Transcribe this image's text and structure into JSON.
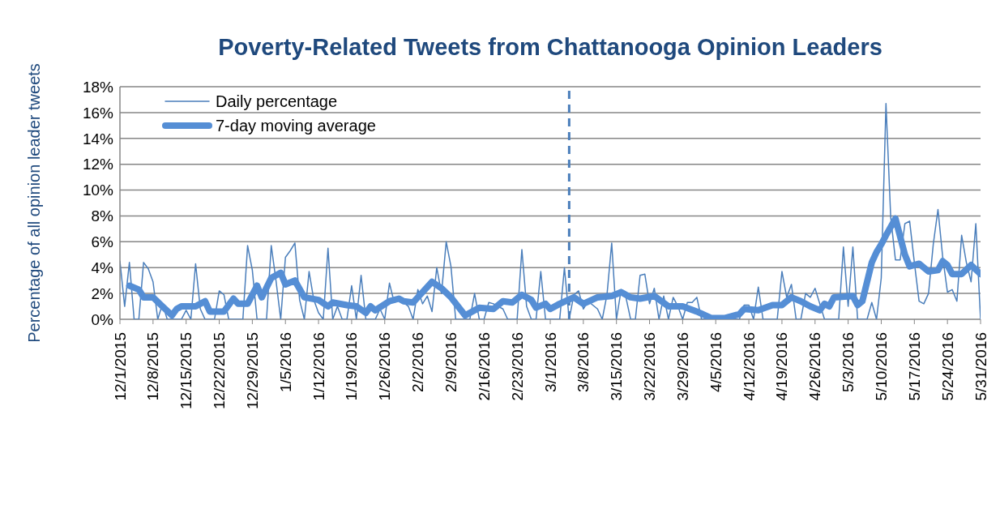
{
  "chart_data": {
    "type": "line",
    "title": "Poverty-Related Tweets from Chattanooga Opinion Leaders",
    "ylabel": "Percentage of all opinion leader tweets",
    "x": [
      "2015-12-01",
      "2015-12-02",
      "2015-12-03",
      "2015-12-04",
      "2015-12-05",
      "2015-12-06",
      "2015-12-07",
      "2015-12-08",
      "2015-12-09",
      "2015-12-10",
      "2015-12-11",
      "2015-12-12",
      "2015-12-13",
      "2015-12-14",
      "2015-12-15",
      "2015-12-16",
      "2015-12-17",
      "2015-12-18",
      "2015-12-19",
      "2015-12-20",
      "2015-12-21",
      "2015-12-22",
      "2015-12-23",
      "2015-12-24",
      "2015-12-25",
      "2015-12-26",
      "2015-12-27",
      "2015-12-28",
      "2015-12-29",
      "2015-12-30",
      "2015-12-31",
      "2016-01-01",
      "2016-01-02",
      "2016-01-03",
      "2016-01-04",
      "2016-01-05",
      "2016-01-06",
      "2016-01-07",
      "2016-01-08",
      "2016-01-09",
      "2016-01-10",
      "2016-01-11",
      "2016-01-12",
      "2016-01-13",
      "2016-01-14",
      "2016-01-15",
      "2016-01-16",
      "2016-01-17",
      "2016-01-18",
      "2016-01-19",
      "2016-01-20",
      "2016-01-21",
      "2016-01-22",
      "2016-01-23",
      "2016-01-24",
      "2016-01-25",
      "2016-01-26",
      "2016-01-27",
      "2016-01-28",
      "2016-01-29",
      "2016-01-30",
      "2016-01-31",
      "2016-02-01",
      "2016-02-02",
      "2016-02-03",
      "2016-02-04",
      "2016-02-05",
      "2016-02-06",
      "2016-02-07",
      "2016-02-08",
      "2016-02-09",
      "2016-02-10",
      "2016-02-11",
      "2016-02-12",
      "2016-02-13",
      "2016-02-14",
      "2016-02-15",
      "2016-02-16",
      "2016-02-17",
      "2016-02-18",
      "2016-02-19",
      "2016-02-20",
      "2016-02-21",
      "2016-02-22",
      "2016-02-23",
      "2016-02-24",
      "2016-02-25",
      "2016-02-26",
      "2016-02-27",
      "2016-02-28",
      "2016-02-29",
      "2016-03-01",
      "2016-03-02",
      "2016-03-03",
      "2016-03-04",
      "2016-03-05",
      "2016-03-06",
      "2016-03-07",
      "2016-03-08",
      "2016-03-09",
      "2016-03-10",
      "2016-03-11",
      "2016-03-12",
      "2016-03-13",
      "2016-03-14",
      "2016-03-15",
      "2016-03-16",
      "2016-03-17",
      "2016-03-18",
      "2016-03-19",
      "2016-03-20",
      "2016-03-21",
      "2016-03-22",
      "2016-03-23",
      "2016-03-24",
      "2016-03-25",
      "2016-03-26",
      "2016-03-27",
      "2016-03-28",
      "2016-03-29",
      "2016-03-30",
      "2016-03-31",
      "2016-04-01",
      "2016-04-02",
      "2016-04-03",
      "2016-04-04",
      "2016-04-05",
      "2016-04-06",
      "2016-04-07",
      "2016-04-08",
      "2016-04-09",
      "2016-04-10",
      "2016-04-11",
      "2016-04-12",
      "2016-04-13",
      "2016-04-14",
      "2016-04-15",
      "2016-04-16",
      "2016-04-17",
      "2016-04-18",
      "2016-04-19",
      "2016-04-20",
      "2016-04-21",
      "2016-04-22",
      "2016-04-23",
      "2016-04-24",
      "2016-04-25",
      "2016-04-26",
      "2016-04-27",
      "2016-04-28",
      "2016-04-29",
      "2016-04-30",
      "2016-05-01",
      "2016-05-02",
      "2016-05-03",
      "2016-05-04",
      "2016-05-05",
      "2016-05-06",
      "2016-05-07",
      "2016-05-08",
      "2016-05-09",
      "2016-05-10",
      "2016-05-11",
      "2016-05-12",
      "2016-05-13",
      "2016-05-14",
      "2016-05-15",
      "2016-05-16",
      "2016-05-17",
      "2016-05-18",
      "2016-05-19",
      "2016-05-20",
      "2016-05-21",
      "2016-05-22",
      "2016-05-23",
      "2016-05-24",
      "2016-05-25",
      "2016-05-26",
      "2016-05-27",
      "2016-05-28",
      "2016-05-29",
      "2016-05-30",
      "2016-05-31"
    ],
    "series": [
      {
        "name": "Daily percentage",
        "color": "#4a7ebb",
        "values": [
          4.5,
          1.0,
          4.4,
          0,
          0,
          4.4,
          3.9,
          2.9,
          0,
          1.2,
          0,
          0,
          0,
          0,
          0.7,
          0,
          4.3,
          0.8,
          0,
          0,
          0,
          2.2,
          1.9,
          0,
          0,
          0,
          0,
          5.7,
          3.8,
          0,
          0,
          0,
          5.7,
          3.0,
          0,
          4.8,
          5.3,
          5.9,
          1.5,
          0,
          3.7,
          1.5,
          0.5,
          0,
          5.5,
          0,
          1.0,
          0,
          0,
          2.6,
          0,
          3.4,
          0,
          0,
          0,
          0.8,
          0,
          2.8,
          1.3,
          1.5,
          1.3,
          1.0,
          0,
          2.3,
          1.2,
          1.8,
          0.6,
          4.0,
          2.0,
          6.0,
          4.1,
          0,
          0,
          0,
          0,
          2.0,
          0,
          0,
          1.3,
          1.2,
          1.0,
          0.8,
          0,
          0,
          0,
          5.4,
          1.0,
          0,
          0,
          3.7,
          0,
          0,
          0,
          0,
          4.0,
          0,
          1.9,
          2.2,
          0.8,
          1.4,
          1.1,
          0.8,
          0,
          1.9,
          5.9,
          0,
          2.3,
          1.7,
          0,
          0,
          3.4,
          3.5,
          1.2,
          2.4,
          0,
          1.8,
          0,
          1.7,
          1.0,
          0,
          1.3,
          1.3,
          1.7,
          0,
          0,
          0,
          0,
          0,
          0,
          0,
          0,
          0,
          1.1,
          1.1,
          0,
          2.5,
          0,
          0,
          0,
          0,
          3.7,
          1.7,
          2.7,
          0,
          0,
          2.0,
          1.7,
          2.4,
          1.2,
          0,
          0,
          0,
          0,
          5.6,
          1.0,
          5.6,
          0,
          0,
          0,
          1.3,
          0,
          3.2,
          16.7,
          7.9,
          4.6,
          4.6,
          7.4,
          7.6,
          4.4,
          1.4,
          1.2,
          2.0,
          5.8,
          8.5,
          4.8,
          2.1,
          2.3,
          1.4,
          6.5,
          4.4,
          2.9,
          7.4,
          0
        ]
      },
      {
        "name": "7-day moving average",
        "color": "#558ed5",
        "x": [
          "2015-12-03",
          "2015-12-05",
          "2015-12-06",
          "2015-12-08",
          "2015-12-10",
          "2015-12-12",
          "2015-12-13",
          "2015-12-14",
          "2015-12-17",
          "2015-12-19",
          "2015-12-20",
          "2015-12-23",
          "2015-12-25",
          "2015-12-26",
          "2015-12-28",
          "2015-12-30",
          "2015-12-31",
          "2016-01-02",
          "2016-01-04",
          "2016-01-05",
          "2016-01-07",
          "2016-01-09",
          "2016-01-12",
          "2016-01-14",
          "2016-01-15",
          "2016-01-18",
          "2016-01-20",
          "2016-01-22",
          "2016-01-23",
          "2016-01-24",
          "2016-01-27",
          "2016-01-29",
          "2016-01-30",
          "2016-02-01",
          "2016-02-02",
          "2016-02-05",
          "2016-02-07",
          "2016-02-09",
          "2016-02-12",
          "2016-02-15",
          "2016-02-18",
          "2016-02-20",
          "2016-02-22",
          "2016-02-24",
          "2016-02-26",
          "2016-02-27",
          "2016-02-29",
          "2016-03-01",
          "2016-03-03",
          "2016-03-06",
          "2016-03-08",
          "2016-03-11",
          "2016-03-14",
          "2016-03-16",
          "2016-03-18",
          "2016-03-20",
          "2016-03-23",
          "2016-03-26",
          "2016-03-29",
          "2016-04-01",
          "2016-04-04",
          "2016-04-07",
          "2016-04-10",
          "2016-04-11",
          "2016-04-14",
          "2016-04-17",
          "2016-04-19",
          "2016-04-21",
          "2016-04-23",
          "2016-04-25",
          "2016-04-27",
          "2016-04-28",
          "2016-04-29",
          "2016-04-30",
          "2016-05-04",
          "2016-05-05",
          "2016-05-06",
          "2016-05-08",
          "2016-05-09",
          "2016-05-10",
          "2016-05-11",
          "2016-05-13",
          "2016-05-15",
          "2016-05-16",
          "2016-05-18",
          "2016-05-20",
          "2016-05-22",
          "2016-05-23",
          "2016-05-24",
          "2016-05-25",
          "2016-05-27",
          "2016-05-29",
          "2016-05-31"
        ],
        "values": [
          2.6,
          2.3,
          1.7,
          1.7,
          1.0,
          0.3,
          0.8,
          1.0,
          1.0,
          1.4,
          0.6,
          0.6,
          1.6,
          1.2,
          1.2,
          2.6,
          1.7,
          3.2,
          3.6,
          2.7,
          3.0,
          1.7,
          1.5,
          1.0,
          1.3,
          1.1,
          1.0,
          0.5,
          1.0,
          0.7,
          1.4,
          1.6,
          1.4,
          1.3,
          1.7,
          2.9,
          2.4,
          1.7,
          0.3,
          0.9,
          0.8,
          1.4,
          1.3,
          1.9,
          1.5,
          0.9,
          1.2,
          0.8,
          1.2,
          1.7,
          1.2,
          1.7,
          1.8,
          2.1,
          1.7,
          1.6,
          1.8,
          1.0,
          1.0,
          0.6,
          0.1,
          0.1,
          0.4,
          0.8,
          0.7,
          1.1,
          1.1,
          1.7,
          1.4,
          1.0,
          0.7,
          1.2,
          1.0,
          1.7,
          1.8,
          1.1,
          1.4,
          4.4,
          5.2,
          5.8,
          6.5,
          7.8,
          5.0,
          4.1,
          4.3,
          3.7,
          3.8,
          4.5,
          4.2,
          3.5,
          3.5,
          4.2,
          3.5
        ]
      }
    ],
    "xlim": [
      "2015-12-01",
      "2016-05-31"
    ],
    "xticks": [
      {
        "value": "2015-12-01",
        "label": "12/1/2015"
      },
      {
        "value": "2015-12-08",
        "label": "12/8/2015"
      },
      {
        "value": "2015-12-15",
        "label": "12/15/2015"
      },
      {
        "value": "2015-12-22",
        "label": "12/22/2015"
      },
      {
        "value": "2015-12-29",
        "label": "12/29/2015"
      },
      {
        "value": "2016-01-05",
        "label": "1/5/2016"
      },
      {
        "value": "2016-01-12",
        "label": "1/12/2016"
      },
      {
        "value": "2016-01-19",
        "label": "1/19/2016"
      },
      {
        "value": "2016-01-26",
        "label": "1/26/2016"
      },
      {
        "value": "2016-02-02",
        "label": "2/2/2016"
      },
      {
        "value": "2016-02-09",
        "label": "2/9/2016"
      },
      {
        "value": "2016-02-16",
        "label": "2/16/2016"
      },
      {
        "value": "2016-02-23",
        "label": "2/23/2016"
      },
      {
        "value": "2016-03-01",
        "label": "3/1/2016"
      },
      {
        "value": "2016-03-08",
        "label": "3/8/2016"
      },
      {
        "value": "2016-03-15",
        "label": "3/15/2016"
      },
      {
        "value": "2016-03-22",
        "label": "3/22/2016"
      },
      {
        "value": "2016-03-29",
        "label": "3/29/2016"
      },
      {
        "value": "2016-04-05",
        "label": "4/5/2016"
      },
      {
        "value": "2016-04-12",
        "label": "4/12/2016"
      },
      {
        "value": "2016-04-19",
        "label": "4/19/2016"
      },
      {
        "value": "2016-04-26",
        "label": "4/26/2016"
      },
      {
        "value": "2016-05-03",
        "label": "5/3/2016"
      },
      {
        "value": "2016-05-10",
        "label": "5/10/2016"
      },
      {
        "value": "2016-05-17",
        "label": "5/17/2016"
      },
      {
        "value": "2016-05-24",
        "label": "5/24/2016"
      },
      {
        "value": "2016-05-31",
        "label": "5/31/2016"
      }
    ],
    "ylim": [
      0,
      18
    ],
    "yticks": [
      {
        "value": 0,
        "label": "0%"
      },
      {
        "value": 2,
        "label": "2%"
      },
      {
        "value": 4,
        "label": "4%"
      },
      {
        "value": 6,
        "label": "6%"
      },
      {
        "value": 8,
        "label": "8%"
      },
      {
        "value": 10,
        "label": "10%"
      },
      {
        "value": 12,
        "label": "12%"
      },
      {
        "value": 14,
        "label": "14%"
      },
      {
        "value": 16,
        "label": "16%"
      },
      {
        "value": 18,
        "label": "18%"
      }
    ],
    "ref_lines": [
      {
        "axis": "x",
        "value": "2016-03-05",
        "color": "#4a7ebb",
        "line_style": "dashed"
      }
    ],
    "grid": "y",
    "legend": "top left",
    "marker": "none"
  }
}
